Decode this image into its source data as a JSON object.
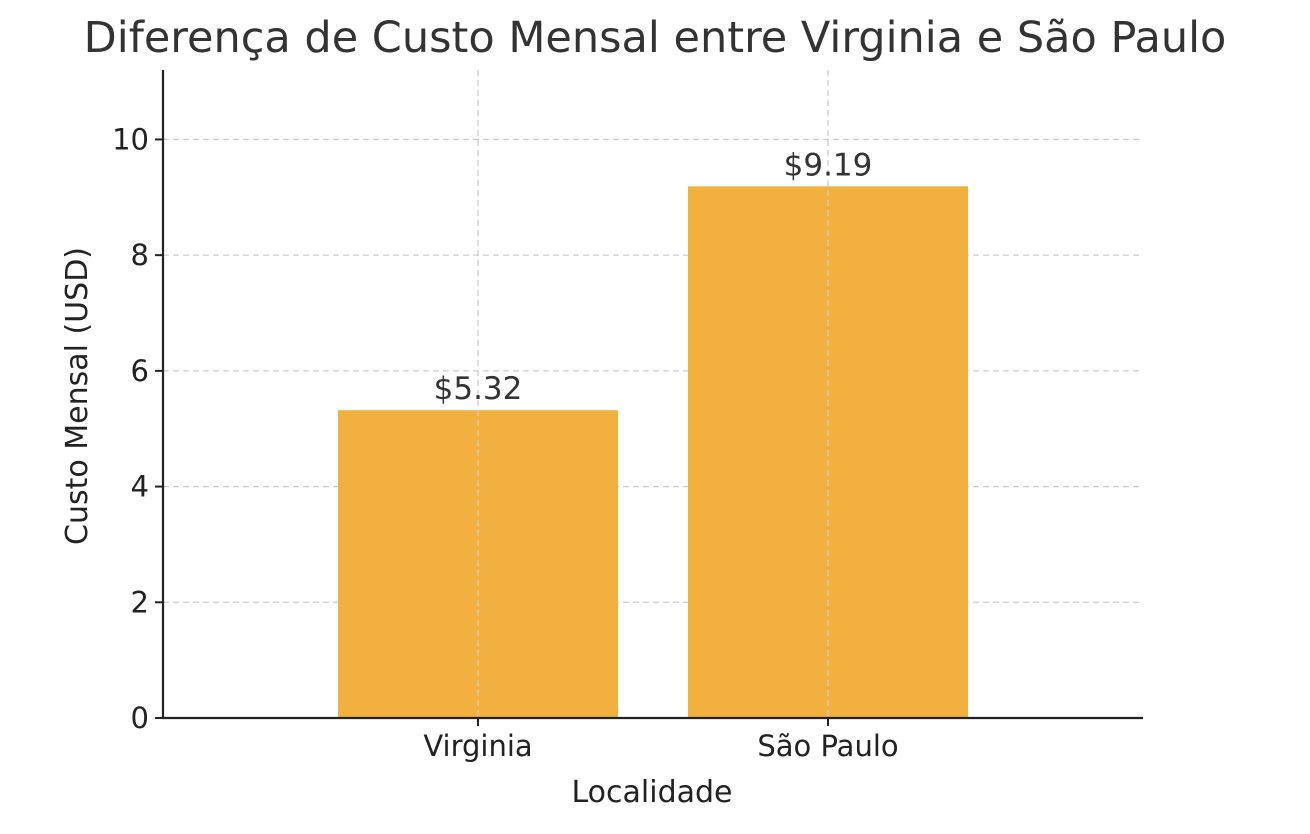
{
  "chart_data": {
    "type": "bar",
    "title": "Diferença de Custo Mensal entre Virginia e São Paulo",
    "xlabel": "Localidade",
    "ylabel": "Custo Mensal (USD)",
    "categories": [
      "Virginia",
      "São Paulo"
    ],
    "values": [
      5.32,
      9.19
    ],
    "data_labels": [
      "$5.32",
      "$9.19"
    ],
    "ylim": [
      0,
      11.2
    ],
    "yticks": [
      0,
      2,
      4,
      6,
      8,
      10
    ],
    "ytick_labels": [
      "0",
      "2",
      "4",
      "6",
      "8",
      "10"
    ],
    "grid": true,
    "bar_color": "#f2b13f"
  }
}
